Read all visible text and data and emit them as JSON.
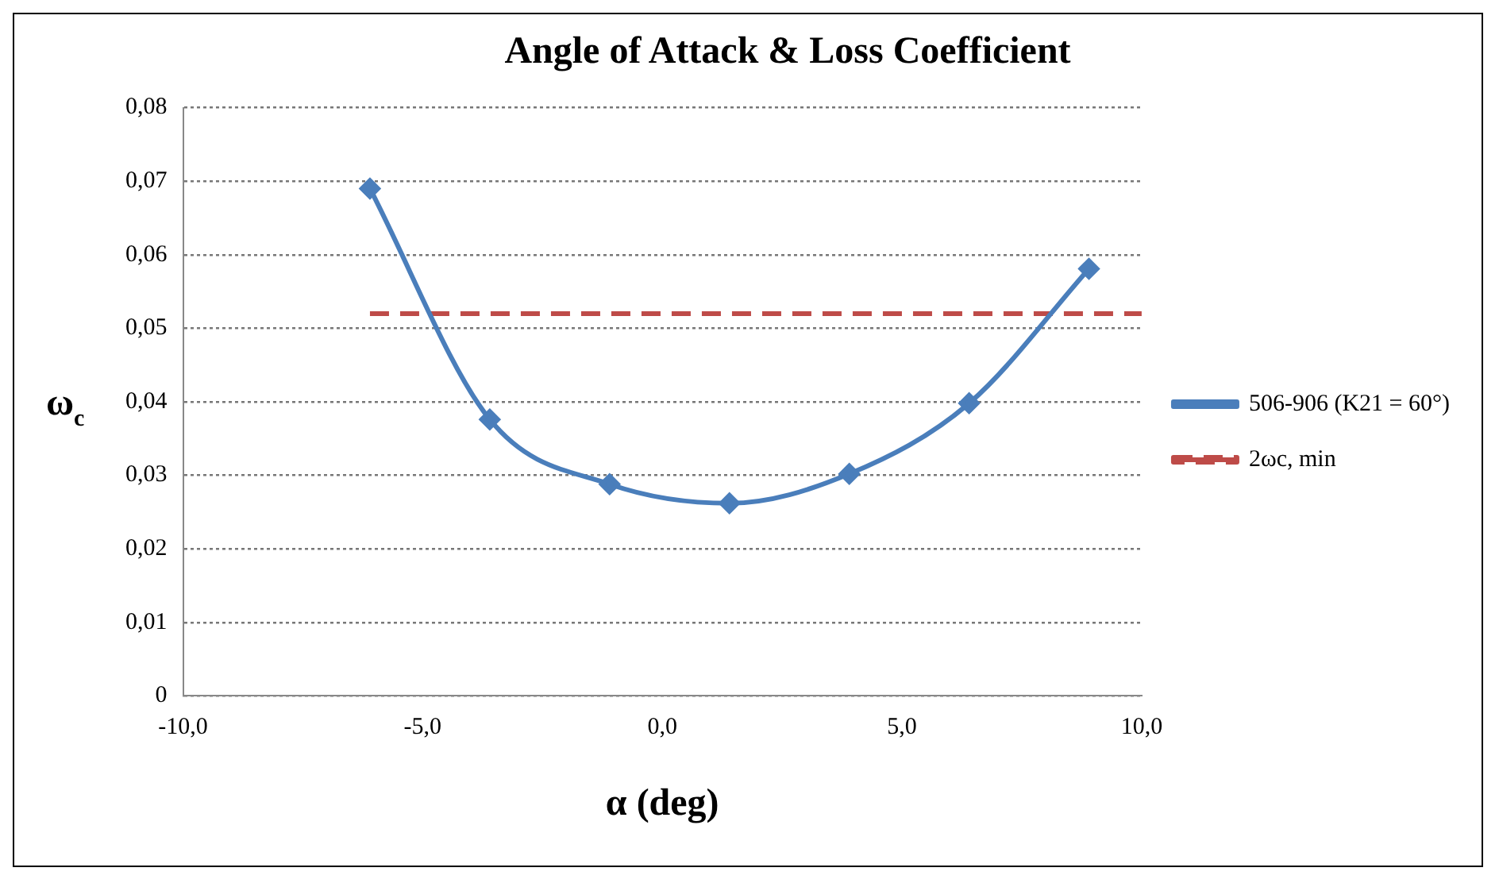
{
  "chart_data": {
    "type": "line",
    "title": "Angle of Attack & Loss Coefficient",
    "xlabel": "α (deg)",
    "ylabel": "ω$_{c}$",
    "series": [
      {
        "name": "506-906 (K21 = 60°)",
        "color": "#4a7ebb",
        "marker": "diamond",
        "line_style": "solid",
        "x": [
          -6.1,
          -3.6,
          -1.1,
          1.4,
          3.9,
          6.4,
          8.9
        ],
        "values": [
          0.069,
          0.0376,
          0.0288,
          0.0262,
          0.0302,
          0.0398,
          0.0581
        ]
      },
      {
        "name": "2ωc, min",
        "color": "#be4b48",
        "marker": "none",
        "line_style": "dashed",
        "x": [
          -6.1,
          10
        ],
        "values": [
          0.052,
          0.052
        ]
      }
    ],
    "xlim": [
      -10,
      10
    ],
    "xticks": [
      {
        "value": -10,
        "label": "-10,0"
      },
      {
        "value": -5,
        "label": "-5,0"
      },
      {
        "value": 0,
        "label": "0,0"
      },
      {
        "value": 5,
        "label": "5,0"
      },
      {
        "value": 10,
        "label": "10,0"
      }
    ],
    "ylim": [
      0,
      0.08
    ],
    "yticks": [
      0,
      {
        "value": 0.01,
        "label": "0,01"
      },
      {
        "value": 0.02,
        "label": "0,02"
      },
      {
        "value": 0.03,
        "label": "0,03"
      },
      {
        "value": 0.04,
        "label": "0,04"
      },
      {
        "value": 0.05,
        "label": "0,05"
      },
      {
        "value": 0.06,
        "label": "0,06"
      },
      {
        "value": 0.07,
        "label": "0,07"
      },
      {
        "value": 0.08,
        "label": "0,08"
      }
    ],
    "grid": "y",
    "legend": "right"
  }
}
